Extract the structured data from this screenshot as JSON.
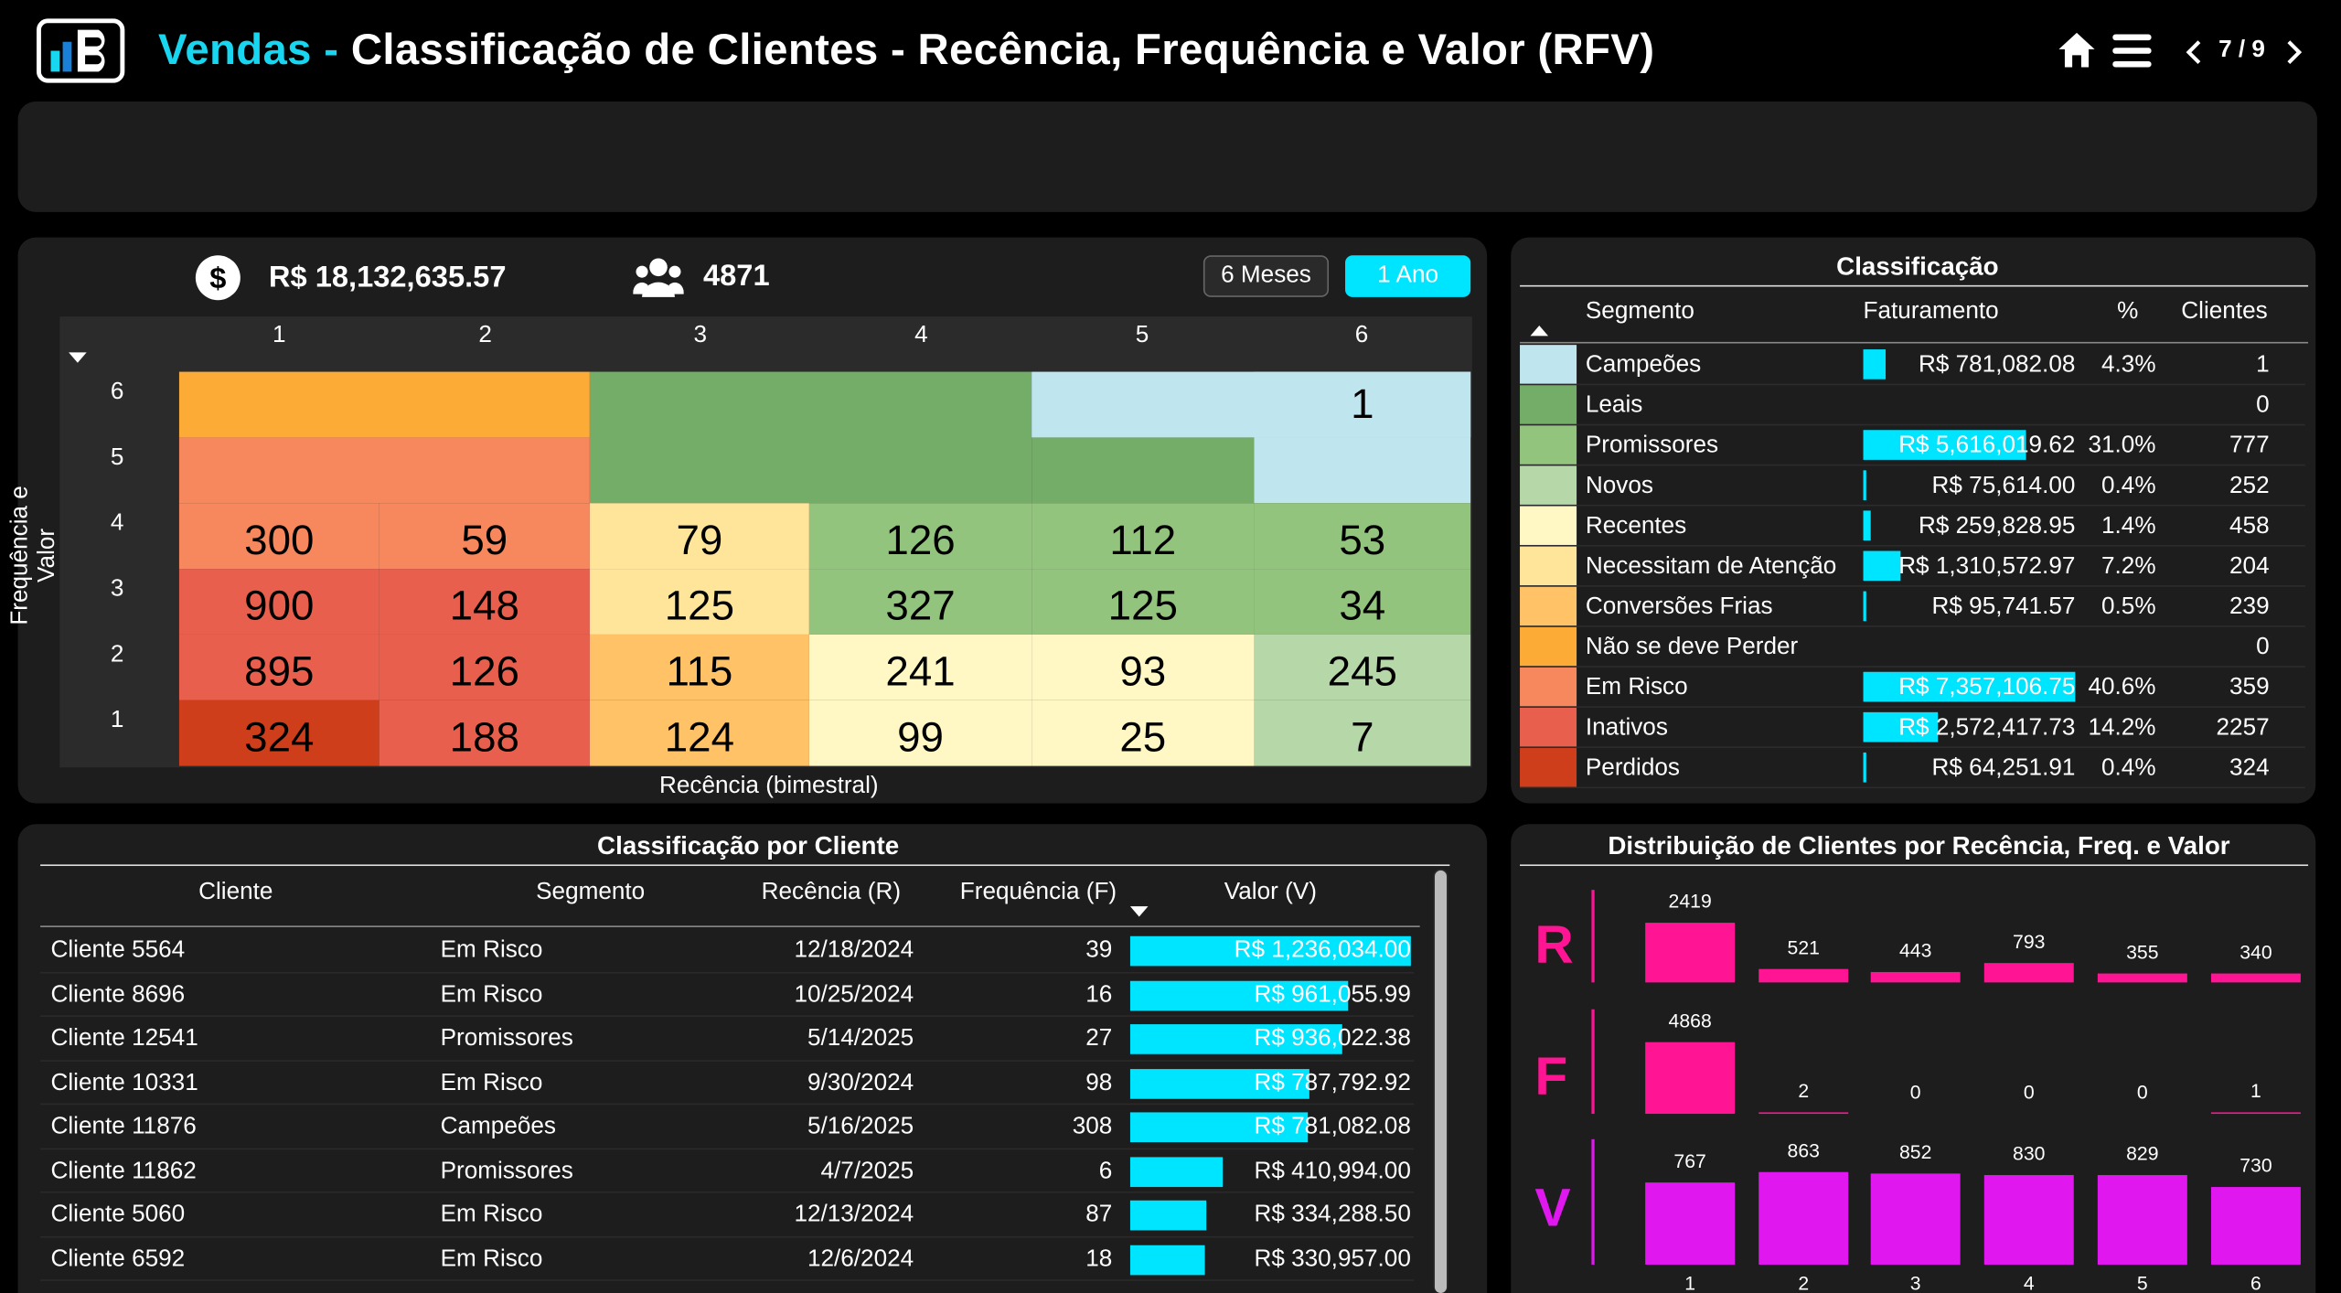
{
  "header": {
    "title_part1": "Vendas -",
    "title_part2": "Classificação de Clientes - Recência, Frequência e Valor (RFV)",
    "page": "7 / 9"
  },
  "kpis": {
    "revenue": "R$ 18,132,635.57",
    "clients": "4871"
  },
  "toggles": {
    "six_months": "6 Meses",
    "one_year": "1 Ano"
  },
  "heatmap": {
    "col_headers": [
      "1",
      "2",
      "3",
      "4",
      "5",
      "6"
    ],
    "row_headers": [
      "6",
      "5",
      "4",
      "3",
      "2",
      "1"
    ],
    "y_label": "Frequência e Valor",
    "x_label": "Recência (bimestral)",
    "top_value": "1",
    "rows": [
      [
        "300",
        "59",
        "79",
        "126",
        "112",
        "53"
      ],
      [
        "900",
        "148",
        "125",
        "327",
        "125",
        "34"
      ],
      [
        "895",
        "126",
        "115",
        "241",
        "93",
        "245"
      ],
      [
        "324",
        "188",
        "124",
        "99",
        "25",
        "7"
      ]
    ]
  },
  "classification": {
    "title": "Classificação",
    "headers": {
      "segment": "Segmento",
      "revenue": "Faturamento",
      "pct": "%",
      "clients": "Clientes"
    },
    "rows": [
      {
        "segment": "Campeões",
        "revenue": "R$ 781,082.08",
        "pct": "4.3%",
        "clients": "1",
        "color": "#bfe6ee",
        "share": 0.043
      },
      {
        "segment": "Leais",
        "revenue": "",
        "pct": "",
        "clients": "0",
        "color": "#74ad68",
        "share": 0
      },
      {
        "segment": "Promissores",
        "revenue": "R$ 5,616,019.62",
        "pct": "31.0%",
        "clients": "777",
        "color": "#93c47d",
        "share": 0.31
      },
      {
        "segment": "Novos",
        "revenue": "R$ 75,614.00",
        "pct": "0.4%",
        "clients": "252",
        "color": "#b6d7a8",
        "share": 0.004
      },
      {
        "segment": "Recentes",
        "revenue": "R$ 259,828.95",
        "pct": "1.4%",
        "clients": "458",
        "color": "#fff8c4",
        "share": 0.014
      },
      {
        "segment": "Necessitam de Atenção",
        "revenue": "R$ 1,310,572.97",
        "pct": "7.2%",
        "clients": "204",
        "color": "#ffe59a",
        "share": 0.072
      },
      {
        "segment": "Conversões Frias",
        "revenue": "R$ 95,741.57",
        "pct": "0.5%",
        "clients": "239",
        "color": "#ffc266",
        "share": 0.005
      },
      {
        "segment": "Não se deve Perder",
        "revenue": "",
        "pct": "",
        "clients": "0",
        "color": "#fbab36",
        "share": 0
      },
      {
        "segment": "Em Risco",
        "revenue": "R$ 7,357,106.75",
        "pct": "40.6%",
        "clients": "359",
        "color": "#f7875c",
        "share": 0.406
      },
      {
        "segment": "Inativos",
        "revenue": "R$ 2,572,417.73",
        "pct": "14.2%",
        "clients": "2257",
        "color": "#e8604d",
        "share": 0.142
      },
      {
        "segment": "Perdidos",
        "revenue": "R$ 64,251.91",
        "pct": "0.4%",
        "clients": "324",
        "color": "#cf3e1b",
        "share": 0.004
      }
    ]
  },
  "clients_table": {
    "title": "Classificação por Cliente",
    "headers": {
      "client": "Cliente",
      "segment": "Segmento",
      "recency": "Recência (R)",
      "frequency": "Frequência (F)",
      "value": "Valor (V)"
    },
    "rows": [
      {
        "client": "Cliente 5564",
        "segment": "Em Risco",
        "recency": "12/18/2024",
        "frequency": "39",
        "value": "R$ 1,236,034.00",
        "share": 1.0
      },
      {
        "client": "Cliente 8696",
        "segment": "Em Risco",
        "recency": "10/25/2024",
        "frequency": "16",
        "value": "R$ 961,055.99",
        "share": 0.778
      },
      {
        "client": "Cliente 12541",
        "segment": "Promissores",
        "recency": "5/14/2025",
        "frequency": "27",
        "value": "R$ 936,022.38",
        "share": 0.757
      },
      {
        "client": "Cliente 10331",
        "segment": "Em Risco",
        "recency": "9/30/2024",
        "frequency": "98",
        "value": "R$ 787,792.92",
        "share": 0.637
      },
      {
        "client": "Cliente 11876",
        "segment": "Campeões",
        "recency": "5/16/2025",
        "frequency": "308",
        "value": "R$ 781,082.08",
        "share": 0.632
      },
      {
        "client": "Cliente 11862",
        "segment": "Promissores",
        "recency": "4/7/2025",
        "frequency": "6",
        "value": "R$ 410,994.00",
        "share": 0.332
      },
      {
        "client": "Cliente 5060",
        "segment": "Em Risco",
        "recency": "12/13/2024",
        "frequency": "87",
        "value": "R$ 334,288.50",
        "share": 0.27
      },
      {
        "client": "Cliente 6592",
        "segment": "Em Risco",
        "recency": "12/6/2024",
        "frequency": "18",
        "value": "R$ 330,957.00",
        "share": 0.268
      }
    ]
  },
  "distribution": {
    "title": "Distribuição de Clientes por Recência, Freq. e Valor",
    "x_labels": [
      "1",
      "2",
      "3",
      "4",
      "5",
      "6"
    ],
    "R": {
      "label": "R",
      "values": [
        2419,
        521,
        443,
        793,
        355,
        340
      ],
      "color": "#ff1493"
    },
    "F": {
      "label": "F",
      "values": [
        4868,
        2,
        0,
        0,
        0,
        1
      ],
      "color": "#ff1493"
    },
    "V": {
      "label": "V",
      "values": [
        767,
        863,
        852,
        830,
        829,
        730
      ],
      "color": "#e117f0"
    }
  },
  "colors": {
    "accent": "#18d6f0",
    "bar": "#00e5ff",
    "panel": "#1d1d1d"
  }
}
